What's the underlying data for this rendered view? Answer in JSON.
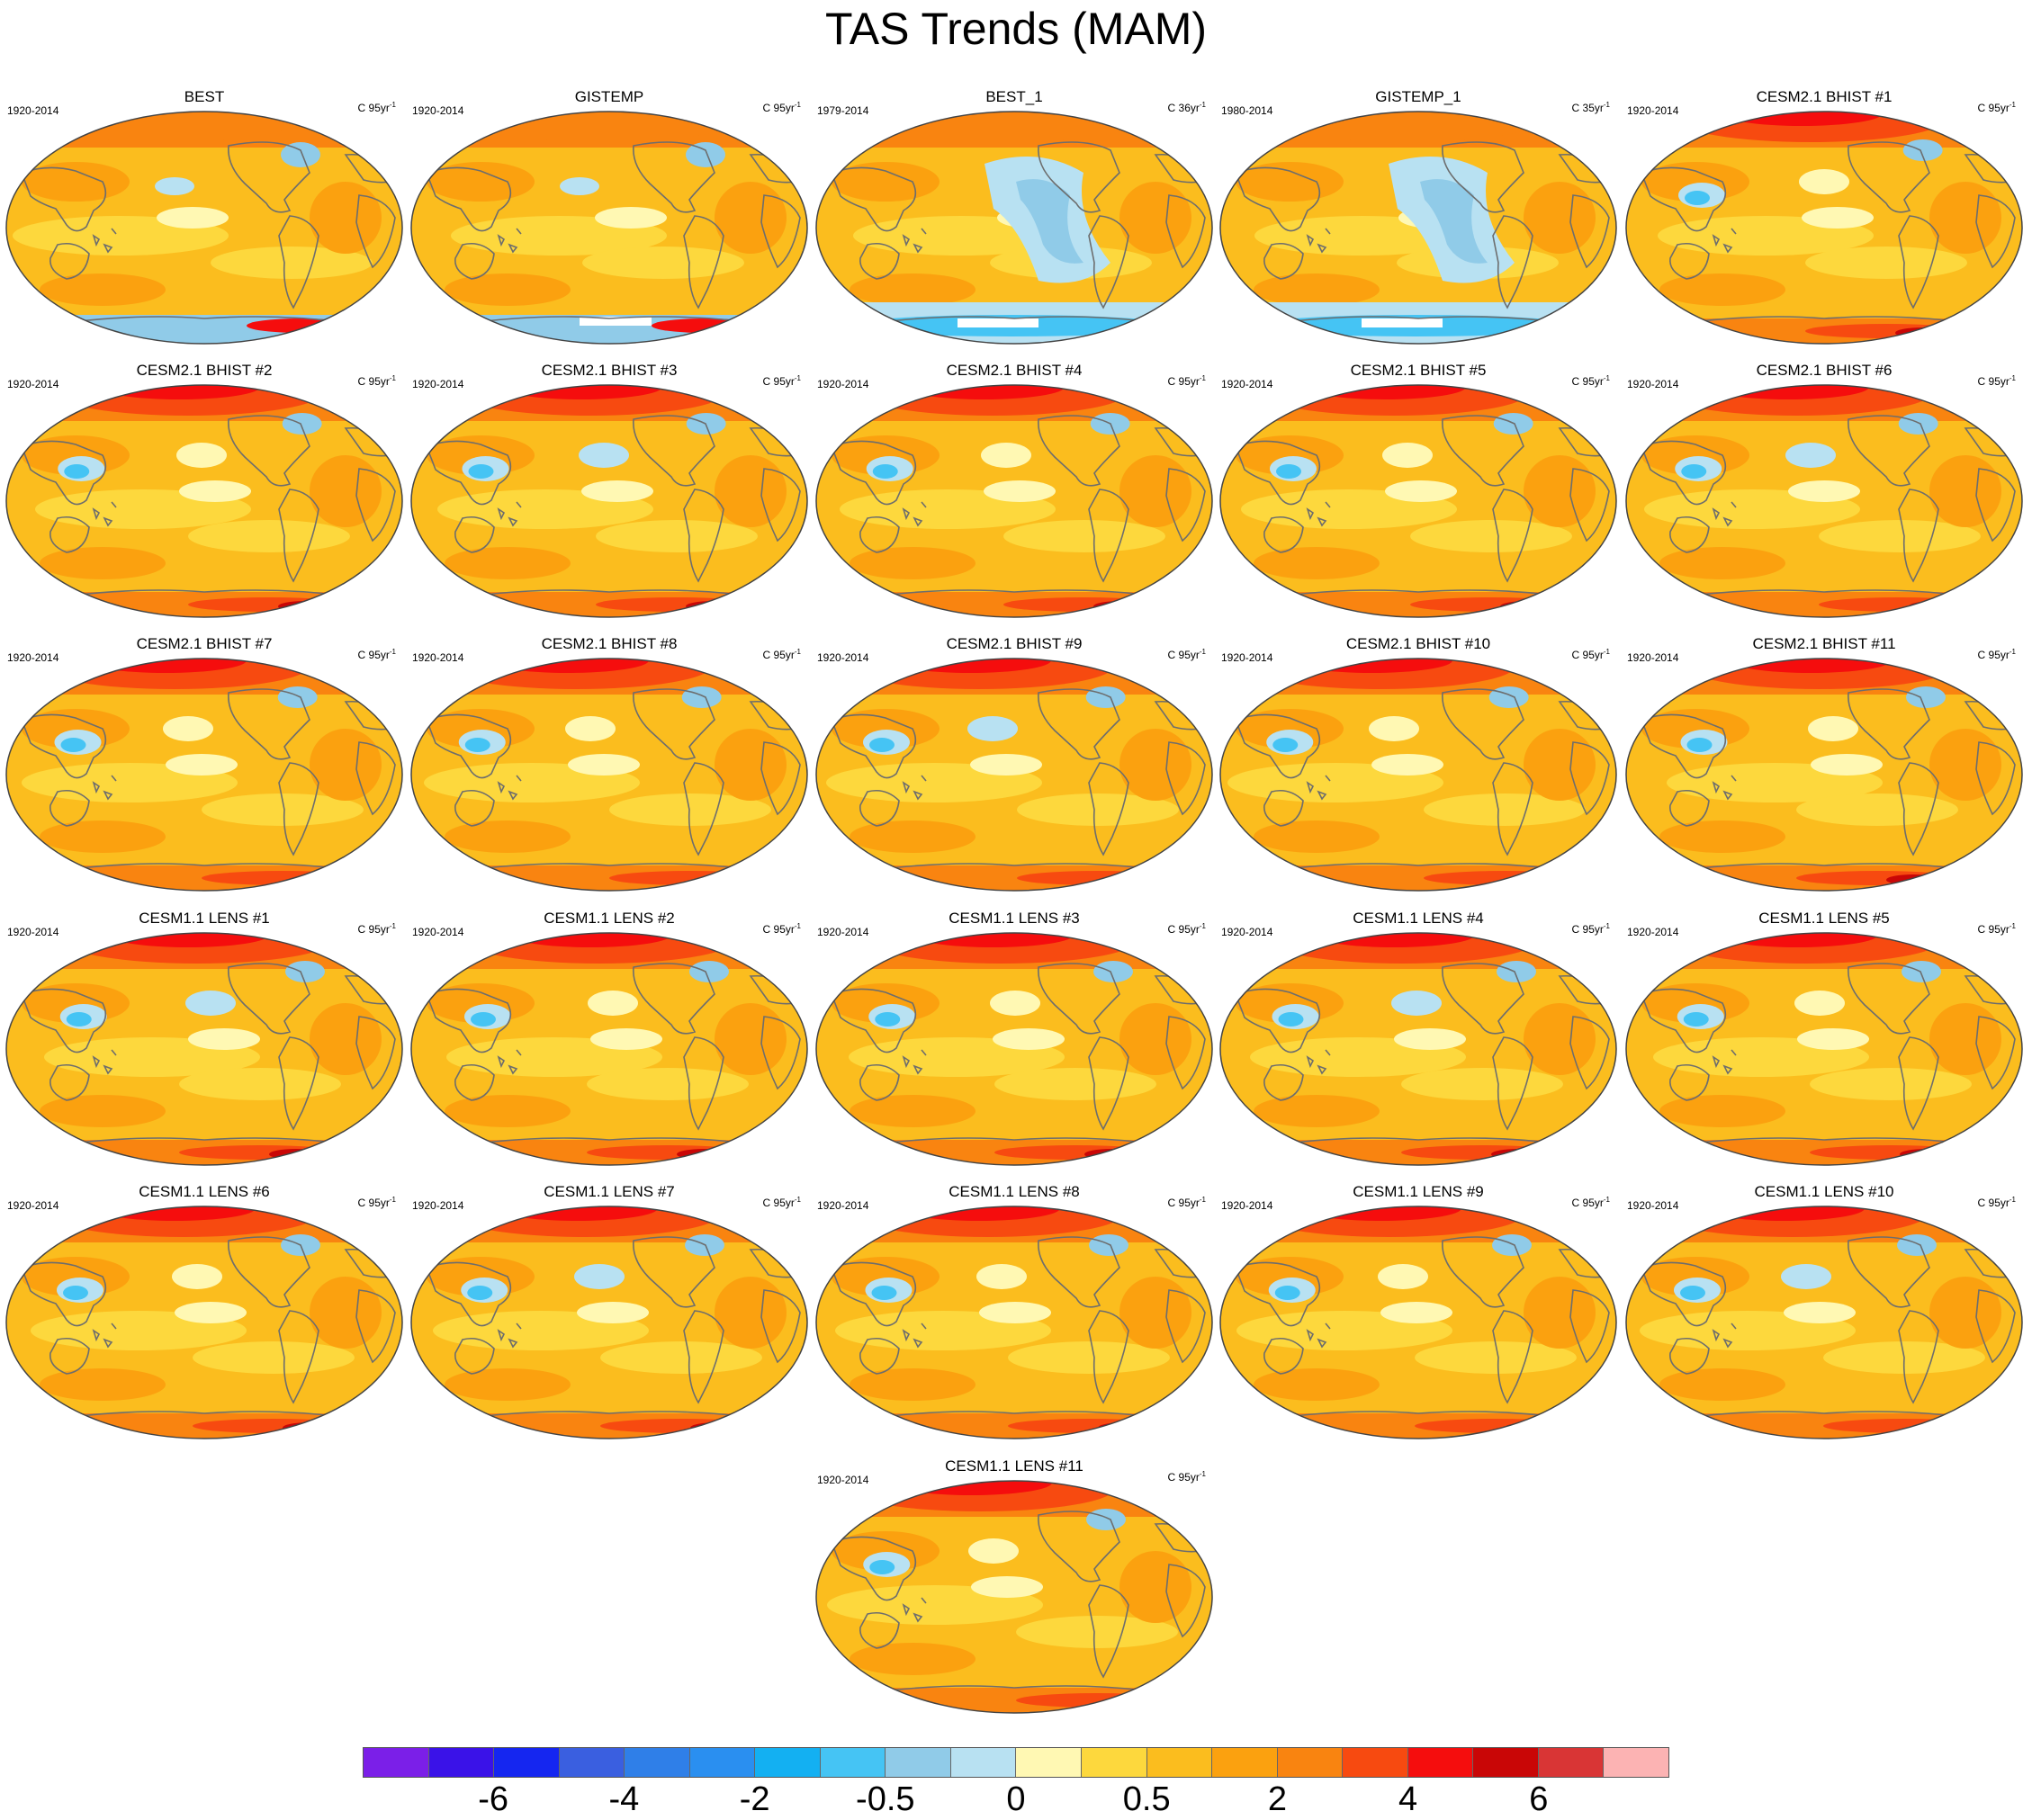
{
  "title": "TAS Trends (MAM)",
  "legend": {
    "colors": [
      "#7b1fe8",
      "#3a12e8",
      "#1526f0",
      "#3a5fe0",
      "#2f7fe8",
      "#2a8ff0",
      "#13b0f2",
      "#45c4f4",
      "#90cbe8",
      "#b8e1f2",
      "#fff8b3",
      "#fdd83d",
      "#fbbd1e",
      "#fba10f",
      "#f98410",
      "#f74a10",
      "#f50d0d",
      "#c90606",
      "#d93535",
      "#fcb3b3"
    ],
    "labels": [
      "-6",
      "-4",
      "-2",
      "-0.5",
      "0",
      "0.5",
      "2",
      "4",
      "6"
    ]
  },
  "panels": [
    {
      "name": "BEST",
      "period": "1920-2014",
      "units": "C 95yr",
      "style": "obs"
    },
    {
      "name": "GISTEMP",
      "period": "1920-2014",
      "units": "C 95yr",
      "style": "obs"
    },
    {
      "name": "BEST_1",
      "period": "1979-2014",
      "units": "C 36yr",
      "style": "short"
    },
    {
      "name": "GISTEMP_1",
      "period": "1980-2014",
      "units": "C 35yr",
      "style": "short"
    },
    {
      "name": "CESM2.1 BHIST #1",
      "period": "1920-2014",
      "units": "C 95yr",
      "style": "model"
    },
    {
      "name": "CESM2.1 BHIST #2",
      "period": "1920-2014",
      "units": "C 95yr",
      "style": "model"
    },
    {
      "name": "CESM2.1 BHIST #3",
      "period": "1920-2014",
      "units": "C 95yr",
      "style": "model"
    },
    {
      "name": "CESM2.1 BHIST #4",
      "period": "1920-2014",
      "units": "C 95yr",
      "style": "model"
    },
    {
      "name": "CESM2.1 BHIST #5",
      "period": "1920-2014",
      "units": "C 95yr",
      "style": "model"
    },
    {
      "name": "CESM2.1 BHIST #6",
      "period": "1920-2014",
      "units": "C 95yr",
      "style": "model"
    },
    {
      "name": "CESM2.1 BHIST #7",
      "period": "1920-2014",
      "units": "C 95yr",
      "style": "model"
    },
    {
      "name": "CESM2.1 BHIST #8",
      "period": "1920-2014",
      "units": "C 95yr",
      "style": "model"
    },
    {
      "name": "CESM2.1 BHIST #9",
      "period": "1920-2014",
      "units": "C 95yr",
      "style": "model"
    },
    {
      "name": "CESM2.1 BHIST #10",
      "period": "1920-2014",
      "units": "C 95yr",
      "style": "model"
    },
    {
      "name": "CESM2.1 BHIST #11",
      "period": "1920-2014",
      "units": "C 95yr",
      "style": "model"
    },
    {
      "name": "CESM1.1 LENS #1",
      "period": "1920-2014",
      "units": "C 95yr",
      "style": "model"
    },
    {
      "name": "CESM1.1 LENS #2",
      "period": "1920-2014",
      "units": "C 95yr",
      "style": "model"
    },
    {
      "name": "CESM1.1 LENS #3",
      "period": "1920-2014",
      "units": "C 95yr",
      "style": "model"
    },
    {
      "name": "CESM1.1 LENS #4",
      "period": "1920-2014",
      "units": "C 95yr",
      "style": "model"
    },
    {
      "name": "CESM1.1 LENS #5",
      "period": "1920-2014",
      "units": "C 95yr",
      "style": "model"
    },
    {
      "name": "CESM1.1 LENS #6",
      "period": "1920-2014",
      "units": "C 95yr",
      "style": "model"
    },
    {
      "name": "CESM1.1 LENS #7",
      "period": "1920-2014",
      "units": "C 95yr",
      "style": "model"
    },
    {
      "name": "CESM1.1 LENS #8",
      "period": "1920-2014",
      "units": "C 95yr",
      "style": "model"
    },
    {
      "name": "CESM1.1 LENS #9",
      "period": "1920-2014",
      "units": "C 95yr",
      "style": "model"
    },
    {
      "name": "CESM1.1 LENS #10",
      "period": "1920-2014",
      "units": "C 95yr",
      "style": "model"
    },
    {
      "name": "CESM1.1 LENS #11",
      "period": "1920-2014",
      "units": "C 95yr",
      "style": "model"
    }
  ]
}
